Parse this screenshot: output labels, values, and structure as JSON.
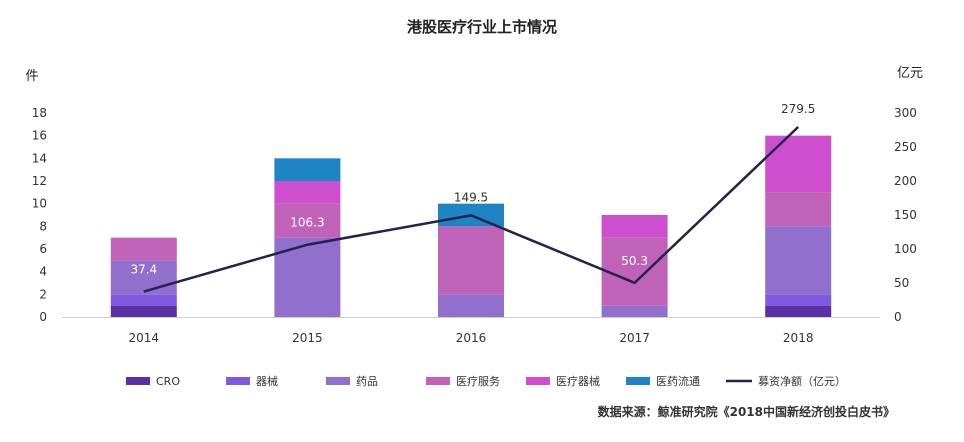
{
  "chart_data": {
    "type": "bar",
    "title": "港股医疗行业上市情况",
    "ylabel_left": "件",
    "ylabel_right": "亿元",
    "categories": [
      "2014",
      "2015",
      "2016",
      "2017",
      "2018"
    ],
    "ylim_left": [
      0,
      18
    ],
    "yticks_left": [
      0,
      2,
      4,
      6,
      8,
      10,
      12,
      14,
      16,
      18
    ],
    "ylim_right": [
      0,
      300
    ],
    "yticks_right": [
      0,
      50,
      100,
      150,
      200,
      250,
      300
    ],
    "stacked": true,
    "series": [
      {
        "name": "CRO",
        "color": "#5b2fa6",
        "values": [
          1,
          0,
          0,
          0,
          1
        ]
      },
      {
        "name": "器械",
        "color": "#7f5ae0",
        "values": [
          1,
          0,
          0,
          0,
          1
        ]
      },
      {
        "name": "药品",
        "color": "#9070cc",
        "values": [
          3,
          7,
          2,
          1,
          6
        ]
      },
      {
        "name": "医疗服务",
        "color": "#c062b8",
        "values": [
          2,
          3,
          6,
          6,
          3
        ]
      },
      {
        "name": "医疗器械",
        "color": "#cd4fcd",
        "values": [
          0,
          2,
          0,
          2,
          5
        ]
      },
      {
        "name": "医药流通",
        "color": "#1f84c4",
        "values": [
          0,
          2,
          2,
          0,
          0
        ]
      }
    ],
    "line": {
      "name": "募资净额（亿元）",
      "color": "#23234e",
      "axis": "right",
      "values": [
        37.4,
        106.3,
        149.5,
        50.3,
        279.5
      ],
      "labels": [
        "37.4",
        "106.3",
        "149.5",
        "50.3",
        "279.5"
      ]
    },
    "legend_position": "bottom",
    "grid": false
  },
  "source_note": "数据来源：鲸准研究院《2018中国新经济创投白皮书》"
}
